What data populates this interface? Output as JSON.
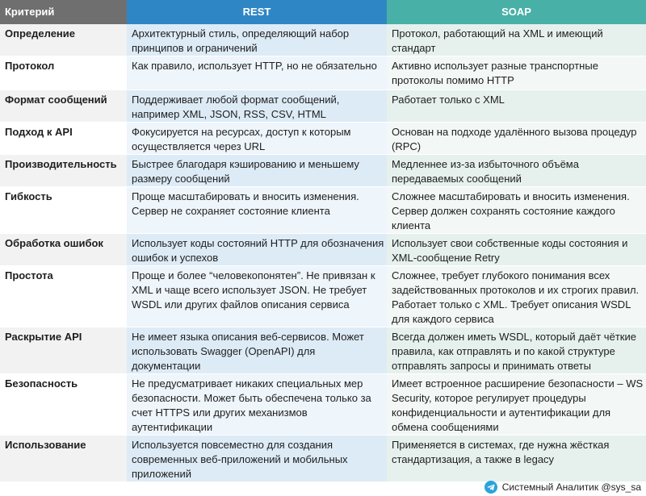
{
  "header": {
    "criterion": "Критерий",
    "rest": "REST",
    "soap": "SOAP"
  },
  "rows": [
    {
      "criterion": "Определение",
      "rest": "Архитектурный стиль, определяющий набор принципов и ограничений",
      "soap": "Протокол, работающий на XML и имеющий стандарт"
    },
    {
      "criterion": "Протокол",
      "rest": "Как правило, использует HTTP, но не обязательно",
      "soap": "Активно использует разные транспортные протоколы помимо HTTP"
    },
    {
      "criterion": "Формат сообщений",
      "rest": "Поддерживает любой формат сообщений, например XML, JSON, RSS, CSV, HTML",
      "soap": "Работает только с XML"
    },
    {
      "criterion": "Подход к API",
      "rest": "Фокусируется на ресурсах, доступ к которым осуществляется через URL",
      "soap": "Основан на подходе удалённого вызова процедур (RPC)"
    },
    {
      "criterion": "Производительность",
      "rest": "Быстрее благодаря кэшированию и меньшему размеру сообщений",
      "soap": "Медленнее из-за избыточного объёма передаваемых сообщений"
    },
    {
      "criterion": "Гибкость",
      "rest": "Проще масштабировать и вносить изменения. Сервер не сохраняет состояние клиента",
      "soap": "Сложнее масштабировать и вносить изменения. Сервер должен сохранять состояние каждого клиента"
    },
    {
      "criterion": "Обработка ошибок",
      "rest": "Использует коды состояний HTTP для обозначения ошибок и успехов",
      "soap": "Использует свои собственные коды состояния и XML-сообщение Retry"
    },
    {
      "criterion": "Простота",
      "rest": "Проще и более “человекопонятен”. Не привязан к XML и чаще всего использует JSON. Не требует WSDL или других файлов описания сервиса",
      "soap": "Сложнее, требует глубокого понимания всех задействованных протоколов и их строгих правил. Работает только с XML. Требует описания WSDL для каждого сервиса"
    },
    {
      "criterion": "Раскрытие API",
      "rest": "Не имеет языка описания веб-сервисов. Может использовать Swagger (OpenAPI) для документации",
      "soap": "Всегда должен иметь WSDL, который даёт чёткие правила, как отправлять и по какой структуре отправлять запросы и принимать ответы"
    },
    {
      "criterion": "Безопасность",
      "rest": "Не предусматривает никаких специальных мер безопасности. Может быть обеспечена только за счет HTTPS или других механизмов аутентификации",
      "soap": "Имеет встроенное расширение безопасности – WS Security, которое регулирует процедуры конфиденциальности и аутентификации для обмена сообщениями"
    },
    {
      "criterion": "Использование",
      "rest": "Используется повсеместно для создания современных веб-приложений и мобильных приложений",
      "soap": "Применяется в системах, где нужна жёсткая стандартизация, а также в legacy"
    }
  ],
  "footer": {
    "text": "Системный Аналитик @sys_sa",
    "icon": "telegram-icon"
  }
}
